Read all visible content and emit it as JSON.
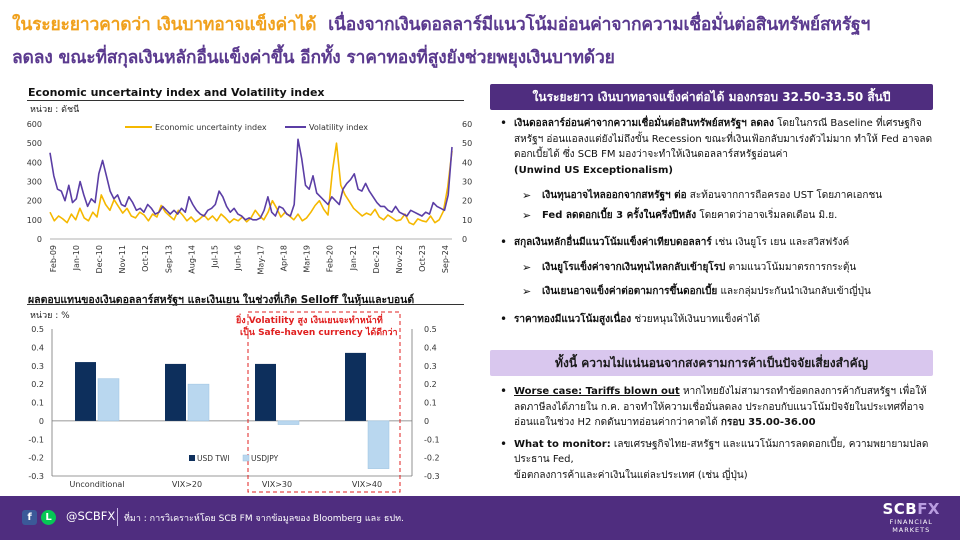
{
  "headline": {
    "part1": "ในระยะยาวคาดว่า เงินบาทอาจแข็งค่าได้",
    "part2": "เนื่องจากเงินดอลลาร์มีแนวโน้มอ่อนค่าจากความเชื่อมั่นต่อสินทรัพย์สหรัฐฯ",
    "line2": "ลดลง ขณะที่สกุลเงินหลักอื่นแข็งค่าขึ้น อีกทั้ง ราคาทองที่สูงยังช่วยพยุงเงินบาทด้วย"
  },
  "chart1": {
    "title": "Economic uncertainty index and Volatility index",
    "unit": "หน่วย : ดัชนี",
    "legend_econ": "Economic uncertainty index",
    "legend_vol": "Volatility index",
    "left_ticks": [
      "600",
      "500",
      "400",
      "300",
      "200",
      "100",
      "0"
    ],
    "right_ticks": [
      "60",
      "50",
      "40",
      "30",
      "20",
      "10",
      "0"
    ],
    "x_ticks": [
      "Feb-09",
      "Jan-10",
      "Dec-10",
      "Nov-11",
      "Oct-12",
      "Sep-13",
      "Aug-14",
      "Jul-15",
      "Jun-16",
      "May-17",
      "Apr-18",
      "Mar-19",
      "Feb-20",
      "Jan-21",
      "Dec-21",
      "Nov-22",
      "Oct-23",
      "Sep-24"
    ],
    "colors": {
      "econ": "#f5b800",
      "vol": "#5b3ea5"
    }
  },
  "chart2": {
    "title": "ผลตอบแทนของเงินดอลลาร์สหรัฐฯ และเงินเยน ในช่วงที่เกิด Selloff ในหุ้นและบอนด์",
    "unit": "หน่วย : %",
    "annotation_line1": "ยิ่ง Volatility สูง เงินเยนจะทำหน้าที่",
    "annotation_line2": "เป็น Safe-haven currency ได้ดีกว่า",
    "left_ticks": [
      "0.5",
      "0.4",
      "0.3",
      "0.2",
      "0.1",
      "0",
      "-0.1",
      "-0.2",
      "-0.3"
    ],
    "right_ticks": [
      "0.5",
      "0.4",
      "0.3",
      "0.2",
      "0.1",
      "0",
      "-0.1",
      "-0.2",
      "-0.3"
    ],
    "legend_usd": "USD TWI",
    "legend_jpy": "USDJPY",
    "colors": {
      "usd": "#0d2f5c",
      "jpy": "#b9d7ef",
      "highlight": "#e02020"
    }
  },
  "chart_data": [
    {
      "type": "line",
      "title": "Economic uncertainty index and Volatility index",
      "ylabel": "หน่วย : ดัชนี",
      "ylim": [
        0,
        600
      ],
      "y2lim": [
        0,
        60
      ],
      "grid": false,
      "legend_position": "top",
      "x_range": [
        "Feb-09",
        "Sep-24"
      ],
      "series": [
        {
          "name": "Economic uncertainty index",
          "axis": "left",
          "color": "#f5b800",
          "values": [
            140,
            95,
            120,
            105,
            85,
            130,
            100,
            160,
            110,
            95,
            140,
            115,
            230,
            180,
            150,
            205,
            170,
            135,
            160,
            120,
            110,
            140,
            125,
            95,
            130,
            115,
            175,
            140,
            120,
            100,
            150,
            125,
            95,
            115,
            90,
            105,
            125,
            100,
            120,
            95,
            130,
            110,
            85,
            105,
            95,
            115,
            90,
            110,
            150,
            120,
            100,
            140,
            200,
            160,
            115,
            140,
            120,
            100,
            130,
            95,
            110,
            140,
            175,
            200,
            155,
            125,
            350,
            500,
            280,
            230,
            195,
            160,
            140,
            120,
            135,
            125,
            155,
            115,
            100,
            125,
            110,
            95,
            100,
            130,
            85,
            75,
            105,
            95,
            90,
            120,
            85,
            100,
            145,
            270,
            460
          ]
        },
        {
          "name": "Volatility index",
          "axis": "right",
          "color": "#5b3ea5",
          "values": [
            45,
            33,
            26,
            25,
            20,
            28,
            19,
            21,
            30,
            23,
            17,
            21,
            19,
            34,
            41,
            33,
            25,
            21,
            23,
            18,
            17,
            22,
            19,
            15,
            16,
            14,
            18,
            16,
            13,
            14,
            17,
            15,
            13,
            15,
            13,
            16,
            14,
            22,
            18,
            15,
            13,
            12,
            15,
            16,
            18,
            25,
            22,
            17,
            14,
            16,
            13,
            12,
            10,
            11,
            10,
            10,
            11,
            15,
            22,
            14,
            12,
            17,
            16,
            13,
            12,
            18,
            52,
            42,
            28,
            26,
            33,
            24,
            22,
            20,
            18,
            22,
            20,
            18,
            26,
            29,
            31,
            34,
            26,
            25,
            29,
            25,
            22,
            19,
            17,
            17,
            15,
            14,
            17,
            14,
            13,
            12,
            15,
            14,
            13,
            12,
            14,
            13,
            19,
            17,
            16,
            15,
            23,
            48
          ]
        }
      ]
    },
    {
      "type": "bar",
      "title": "ผลตอบแทนของเงินดอลลาร์สหรัฐฯ และเงินเยน ในช่วงที่เกิด Selloff ในหุ้นและบอนด์",
      "ylabel": "หน่วย : %",
      "ylim": [
        -0.3,
        0.5
      ],
      "categories": [
        "Unconditional",
        "VIX>20",
        "VIX>30",
        "VIX>40"
      ],
      "series": [
        {
          "name": "USD TWI",
          "values": [
            0.32,
            0.31,
            0.31,
            0.37
          ]
        },
        {
          "name": "USDJPY",
          "values": [
            0.23,
            0.2,
            -0.02,
            -0.26
          ]
        }
      ]
    }
  ],
  "right": {
    "header1": "ในระยะยาว เงินบาทอาจแข็งค่าต่อได้ มองกรอบ 32.50-33.50 สิ้นปี",
    "b1_bold": "เงินดอลลาร์อ่อนค่าจากความเชื่อมั่นต่อสินทรัพย์สหรัฐฯ ลดลง",
    "b1_text": " โดยในกรณี Baseline ที่เศรษฐกิจสหรัฐฯ อ่อนแอลงแต่ยังไม่ถึงขั้น Recession ขณะที่เงินเฟ้อกลับมาเร่งตัวไม่มาก ทำให้ Fed อาจลดดอกเบี้ยได้ ซึ่ง SCB FM มองว่าจะทำให้เงินดอลลาร์สหรัฐอ่อนค่า",
    "b1_tail": "(Unwind US Exceptionalism)",
    "s1_bold": "เงินทุนอาจไหลออกจากสหรัฐฯ ต่อ",
    "s1_text": " สะท้อนจากการถือครอง UST โดยภาคเอกชน",
    "s2_bold": "Fed ลดดอกเบี้ย 3 ครั้งในครึ่งปีหลัง",
    "s2_text": " โดยคาดว่าอาจเริ่มลดเดือน มิ.ย.",
    "b2_bold": "สกุลเงินหลักอื่นมีแนวโน้มแข็งค่าเทียบดอลลาร์",
    "b2_text": " เช่น เงินยูโร เยน และสวิสฟรังค์",
    "s3_bold": "เงินยูโรแข็งค่าจากเงินทุนไหลกลับเข้ายุโรป",
    "s3_text": " ตามแนวโน้มมาตรการกระตุ้น",
    "s4_bold": "เงินเยนอาจแข็งค่าต่อตามการขึ้นดอกเบี้ย",
    "s4_text": " และกลุ่มประกันนำเงินกลับเข้าญี่ปุ่น",
    "b3_bold": "ราคาทองมีแนวโน้มสูงเนื่อง",
    "b3_text": " ช่วยหนุนให้เงินบาทแข็งค่าได้",
    "header2": "ทั้งนี้ ความไม่แน่นอนจากสงครามการค้าเป็นปัจจัยเสี่ยงสำคัญ",
    "b4_bold": "Worse case: Tariffs blown out",
    "b4_text": " หากไทยยังไม่สามารถทำข้อตกลงการค้ากับสหรัฐฯ เพื่อให้ลดภาษีลงได้ภายใน ก.ค. อาจทำให้ความเชื่อมั่นลดลง ประกอบกับแนวโน้มปัจจัยในประเทศที่อาจอ่อนแอในช่วง H2 กดดันบาทอ่อนค่ากว่าคาดได้ ",
    "b4_tail": "กรอบ 35.00-36.00",
    "b5_bold": "What to monitor:",
    "b5_text": " เลขเศรษฐกิจไทย-สหรัฐฯ และแนวโน้มการลดดอกเบี้ย, ความพยายามปลดประธาน Fed,",
    "b5_line2": "ข้อตกลงการค้าและค่าเงินในแต่ละประเทศ (เช่น ญี่ปุ่น)"
  },
  "footer": {
    "facebook_icon": "f",
    "line_icon": "L",
    "handle": "@SCBFX",
    "source": "ที่มา : การวิเคราะห์โดย SCB FM จากข้อมูลของ Bloomberg และ ธปท.",
    "logo_scb": "SCB",
    "logo_fx": "FX",
    "logo_line2": "FINANCIAL",
    "logo_line3": "MARKETS"
  }
}
